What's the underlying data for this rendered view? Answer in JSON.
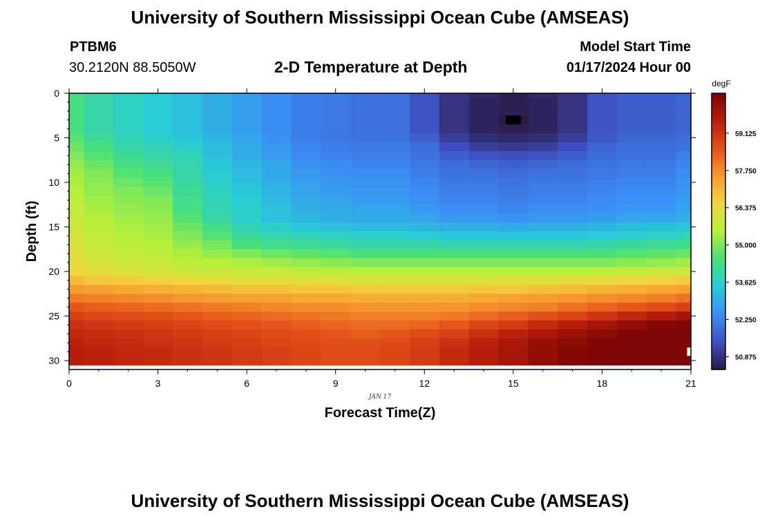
{
  "header": {
    "title": "University of Southern Mississippi Ocean Cube (AMSEAS)",
    "station": "PTBM6",
    "coords": "30.2120N  88.5050W",
    "plot_title": "2-D Temperature at Depth",
    "model_label": "Model Start Time",
    "model_time": "01/17/2024 Hour 00"
  },
  "footer": {
    "title": "University of Southern Mississippi Ocean Cube (AMSEAS)"
  },
  "colors": {
    "scale": [
      "#2a1a45",
      "#3f4fbf",
      "#3b8ef5",
      "#28cbd8",
      "#47e07a",
      "#b6f03a",
      "#f1d640",
      "#f89a2e",
      "#e4521a",
      "#b81e0b",
      "#7a0404"
    ]
  },
  "chart_data": {
    "type": "heatmap",
    "title": "2-D Temperature at Depth",
    "xlabel": "Forecast Time(Z)",
    "ylabel": "Depth (ft)",
    "date_label": "JAN 17",
    "xlim": [
      0,
      21
    ],
    "ylim": [
      0,
      31
    ],
    "y_inverted": true,
    "x_ticks": [
      "0",
      "3",
      "6",
      "9",
      "12",
      "15",
      "18",
      "21"
    ],
    "y_ticks": [
      "0",
      "5",
      "10",
      "15",
      "20",
      "25",
      "30"
    ],
    "colorbar": {
      "label": "degF",
      "range": [
        50.4,
        60.6
      ],
      "ticks": [
        "59.125",
        "57.750",
        "56.375",
        "55.000",
        "53.625",
        "52.250",
        "50.875"
      ]
    },
    "hours": [
      0,
      1,
      2,
      3,
      4,
      5,
      6,
      7,
      8,
      9,
      10,
      11,
      12,
      13,
      14,
      15,
      16,
      17,
      18,
      19,
      20,
      21
    ],
    "depth_rows_ft": [
      0,
      1,
      2,
      3,
      4,
      5,
      6,
      7,
      8,
      9,
      10,
      11,
      12,
      13,
      14,
      15,
      16,
      17,
      18,
      19,
      20,
      21,
      22,
      23,
      24,
      25,
      26,
      27,
      28,
      29,
      30
    ],
    "temperature_degF": [
      [
        54.4,
        54.0,
        53.7,
        53.5,
        53.3,
        53.0,
        52.7,
        52.4,
        52.2,
        52.1,
        52.0,
        52.0,
        51.5,
        50.9,
        50.7,
        50.5,
        50.7,
        50.9,
        51.5,
        51.7,
        51.7,
        51.8
      ],
      [
        54.4,
        54.0,
        53.7,
        53.5,
        53.3,
        53.0,
        52.7,
        52.4,
        52.2,
        52.1,
        52.0,
        52.0,
        51.5,
        50.9,
        50.6,
        50.5,
        50.6,
        50.9,
        51.5,
        51.7,
        51.7,
        51.8
      ],
      [
        54.4,
        54.0,
        53.7,
        53.5,
        53.3,
        53.0,
        52.7,
        52.4,
        52.2,
        52.1,
        52.0,
        52.0,
        51.5,
        50.9,
        50.6,
        50.5,
        50.6,
        50.9,
        51.5,
        51.7,
        51.7,
        51.8
      ],
      [
        54.4,
        54.0,
        53.7,
        53.5,
        53.3,
        53.0,
        52.7,
        52.4,
        52.2,
        52.1,
        52.0,
        52.0,
        51.5,
        50.9,
        50.6,
        50.4,
        50.6,
        50.9,
        51.5,
        51.7,
        51.7,
        51.8
      ],
      [
        54.4,
        54.0,
        53.7,
        53.5,
        53.3,
        53.0,
        52.7,
        52.4,
        52.2,
        52.1,
        52.0,
        52.0,
        51.5,
        50.9,
        50.6,
        50.5,
        50.6,
        50.9,
        51.5,
        51.7,
        51.7,
        51.8
      ],
      [
        54.6,
        54.2,
        53.8,
        53.6,
        53.4,
        53.1,
        52.8,
        52.5,
        52.2,
        52.1,
        52.0,
        52.0,
        51.7,
        51.1,
        50.8,
        50.7,
        50.8,
        51.1,
        51.6,
        51.8,
        51.8,
        51.9
      ],
      [
        54.8,
        54.4,
        54.0,
        53.8,
        53.6,
        53.2,
        52.9,
        52.6,
        52.3,
        52.2,
        52.1,
        52.1,
        51.9,
        51.4,
        51.1,
        51.0,
        51.1,
        51.4,
        51.8,
        51.9,
        51.9,
        52.0
      ],
      [
        55.0,
        54.6,
        54.2,
        54.0,
        53.8,
        53.3,
        53.0,
        52.7,
        52.4,
        52.3,
        52.2,
        52.2,
        52.0,
        51.7,
        51.5,
        51.4,
        51.5,
        51.7,
        51.9,
        52.0,
        52.0,
        52.2
      ],
      [
        55.2,
        54.8,
        54.4,
        54.2,
        53.9,
        53.4,
        53.1,
        52.8,
        52.5,
        52.4,
        52.3,
        52.3,
        52.1,
        51.9,
        51.8,
        51.7,
        51.8,
        51.9,
        52.0,
        52.1,
        52.1,
        52.3
      ],
      [
        55.3,
        55.0,
        54.6,
        54.4,
        54.0,
        53.5,
        53.2,
        52.9,
        52.6,
        52.5,
        52.4,
        52.4,
        52.2,
        52.0,
        52.0,
        51.9,
        52.0,
        52.0,
        52.1,
        52.2,
        52.2,
        52.4
      ],
      [
        55.4,
        55.1,
        54.8,
        54.6,
        54.1,
        53.6,
        53.3,
        53.0,
        52.7,
        52.6,
        52.5,
        52.5,
        52.3,
        52.1,
        52.1,
        52.0,
        52.1,
        52.1,
        52.2,
        52.3,
        52.3,
        52.5
      ],
      [
        55.5,
        55.2,
        55.0,
        54.8,
        54.2,
        53.7,
        53.4,
        53.1,
        52.8,
        52.7,
        52.6,
        52.6,
        52.4,
        52.2,
        52.2,
        52.1,
        52.2,
        52.2,
        52.3,
        52.4,
        52.4,
        52.6
      ],
      [
        55.6,
        55.3,
        55.1,
        55.0,
        54.3,
        53.8,
        53.5,
        53.2,
        52.9,
        52.8,
        52.7,
        52.7,
        52.5,
        52.3,
        52.3,
        52.2,
        52.3,
        52.3,
        52.4,
        52.5,
        52.5,
        52.7
      ],
      [
        55.7,
        55.4,
        55.2,
        55.1,
        54.4,
        53.9,
        53.6,
        53.3,
        53.0,
        52.9,
        52.8,
        52.8,
        52.6,
        52.4,
        52.4,
        52.3,
        52.4,
        52.4,
        52.5,
        52.6,
        52.6,
        52.8
      ],
      [
        55.8,
        55.5,
        55.3,
        55.2,
        54.6,
        54.0,
        53.6,
        53.3,
        53.1,
        53.0,
        52.9,
        52.9,
        52.8,
        52.6,
        52.6,
        52.5,
        52.6,
        52.6,
        52.7,
        52.8,
        52.8,
        53.0
      ],
      [
        55.9,
        55.6,
        55.4,
        55.3,
        54.8,
        54.3,
        53.8,
        53.6,
        53.4,
        53.3,
        53.2,
        53.2,
        53.1,
        53.0,
        53.0,
        52.9,
        53.0,
        53.0,
        53.1,
        53.2,
        53.3,
        53.4
      ],
      [
        56.0,
        55.7,
        55.5,
        55.4,
        55.0,
        54.6,
        54.1,
        53.9,
        53.8,
        53.7,
        53.6,
        53.6,
        53.5,
        53.4,
        53.4,
        53.4,
        53.4,
        53.4,
        53.5,
        53.6,
        53.7,
        53.8
      ],
      [
        56.1,
        55.8,
        55.6,
        55.5,
        55.2,
        54.9,
        54.5,
        54.3,
        54.2,
        54.1,
        54.0,
        54.0,
        54.0,
        53.9,
        53.9,
        53.9,
        53.9,
        53.9,
        54.0,
        54.1,
        54.2,
        54.3
      ],
      [
        56.2,
        55.9,
        55.7,
        55.6,
        55.4,
        55.2,
        55.0,
        54.8,
        54.7,
        54.6,
        54.5,
        54.5,
        54.5,
        54.5,
        54.5,
        54.5,
        54.5,
        54.5,
        54.5,
        54.6,
        54.7,
        54.8
      ],
      [
        56.3,
        56.1,
        55.9,
        55.8,
        55.6,
        55.5,
        55.4,
        55.3,
        55.2,
        55.1,
        55.0,
        55.0,
        55.0,
        55.0,
        55.0,
        55.0,
        55.0,
        55.0,
        55.0,
        55.1,
        55.2,
        55.3
      ],
      [
        56.5,
        56.3,
        56.1,
        56.0,
        55.9,
        55.8,
        55.7,
        55.7,
        55.6,
        55.6,
        55.5,
        55.5,
        55.5,
        55.5,
        55.5,
        55.5,
        55.5,
        55.5,
        55.6,
        55.7,
        55.8,
        55.9
      ],
      [
        57.0,
        56.8,
        56.7,
        56.6,
        56.5,
        56.4,
        56.3,
        56.3,
        56.2,
        56.2,
        56.1,
        56.1,
        56.1,
        56.1,
        56.1,
        56.2,
        56.2,
        56.3,
        56.4,
        56.5,
        56.6,
        56.7
      ],
      [
        57.5,
        57.4,
        57.3,
        57.2,
        57.1,
        57.0,
        56.9,
        56.9,
        56.8,
        56.8,
        56.7,
        56.7,
        56.7,
        56.7,
        56.8,
        56.8,
        56.9,
        57.0,
        57.1,
        57.2,
        57.3,
        57.4
      ],
      [
        58.0,
        57.9,
        57.8,
        57.7,
        57.6,
        57.5,
        57.4,
        57.4,
        57.3,
        57.3,
        57.2,
        57.2,
        57.2,
        57.2,
        57.3,
        57.4,
        57.5,
        57.6,
        57.7,
        57.8,
        57.9,
        58.1
      ],
      [
        58.5,
        58.4,
        58.3,
        58.2,
        58.1,
        58.0,
        57.9,
        57.8,
        57.7,
        57.7,
        57.6,
        57.6,
        57.6,
        57.6,
        57.7,
        57.8,
        57.9,
        58.1,
        58.3,
        58.5,
        58.7,
        58.9
      ],
      [
        58.9,
        58.8,
        58.7,
        58.6,
        58.5,
        58.4,
        58.3,
        58.2,
        58.1,
        58.0,
        57.9,
        57.9,
        57.9,
        58.0,
        58.2,
        58.4,
        58.6,
        58.8,
        59.1,
        59.4,
        59.7,
        59.9
      ],
      [
        59.2,
        59.1,
        59.0,
        58.9,
        58.8,
        58.7,
        58.6,
        58.5,
        58.4,
        58.3,
        58.2,
        58.2,
        58.3,
        58.5,
        58.8,
        59.0,
        59.3,
        59.6,
        59.9,
        60.2,
        60.4,
        60.5
      ],
      [
        59.4,
        59.3,
        59.2,
        59.1,
        59.0,
        58.9,
        58.8,
        58.7,
        58.6,
        58.5,
        58.4,
        58.5,
        58.7,
        58.9,
        59.2,
        59.5,
        59.8,
        60.1,
        60.3,
        60.5,
        60.5,
        60.5
      ],
      [
        59.5,
        59.4,
        59.3,
        59.2,
        59.1,
        59.0,
        58.9,
        58.8,
        58.7,
        58.6,
        58.6,
        58.7,
        58.9,
        59.2,
        59.5,
        59.8,
        60.1,
        60.3,
        60.5,
        60.5,
        60.5,
        60.5
      ],
      [
        59.6,
        59.5,
        59.4,
        59.3,
        59.2,
        59.1,
        59.0,
        58.9,
        58.8,
        58.7,
        58.7,
        58.8,
        59.0,
        59.3,
        59.6,
        59.9,
        60.2,
        60.4,
        60.5,
        60.5,
        60.5,
        60.5
      ],
      [
        59.6,
        59.5,
        59.4,
        59.3,
        59.2,
        59.1,
        59.0,
        58.9,
        58.8,
        58.7,
        58.7,
        58.8,
        59.0,
        59.3,
        59.6,
        59.9,
        60.2,
        60.4,
        60.5,
        60.5,
        60.5,
        60.5
      ]
    ],
    "markers": [
      {
        "name": "min-marker",
        "hour": 15,
        "depth_ft": 3,
        "color": "#000000"
      },
      {
        "name": "max-marker",
        "hour": 21,
        "depth_ft": 29,
        "color": "#ffffff"
      }
    ]
  }
}
